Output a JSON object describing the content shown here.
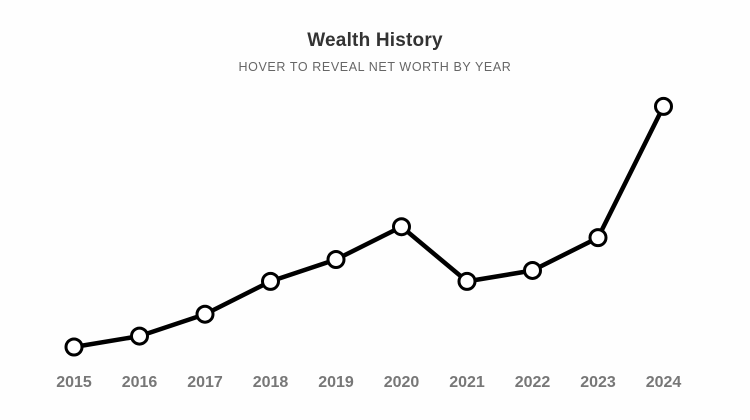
{
  "chart_data": {
    "type": "line",
    "title": "Wealth History",
    "subtitle": "HOVER TO REVEAL NET WORTH BY YEAR",
    "xlabel": "",
    "ylabel": "",
    "categories": [
      "2015",
      "2016",
      "2017",
      "2018",
      "2019",
      "2020",
      "2021",
      "2022",
      "2023",
      "2024"
    ],
    "series": [
      {
        "values": [
          0,
          10,
          30,
          60,
          80,
          110,
          60,
          70,
          100,
          220
        ]
      }
    ],
    "ylim": [
      0,
      230
    ],
    "grid": false,
    "legend": "none",
    "colors": {
      "line": "#000000",
      "marker_fill": "#ffffff",
      "tick_text": "#777777",
      "title": "#333333",
      "subtitle": "#666666"
    }
  }
}
